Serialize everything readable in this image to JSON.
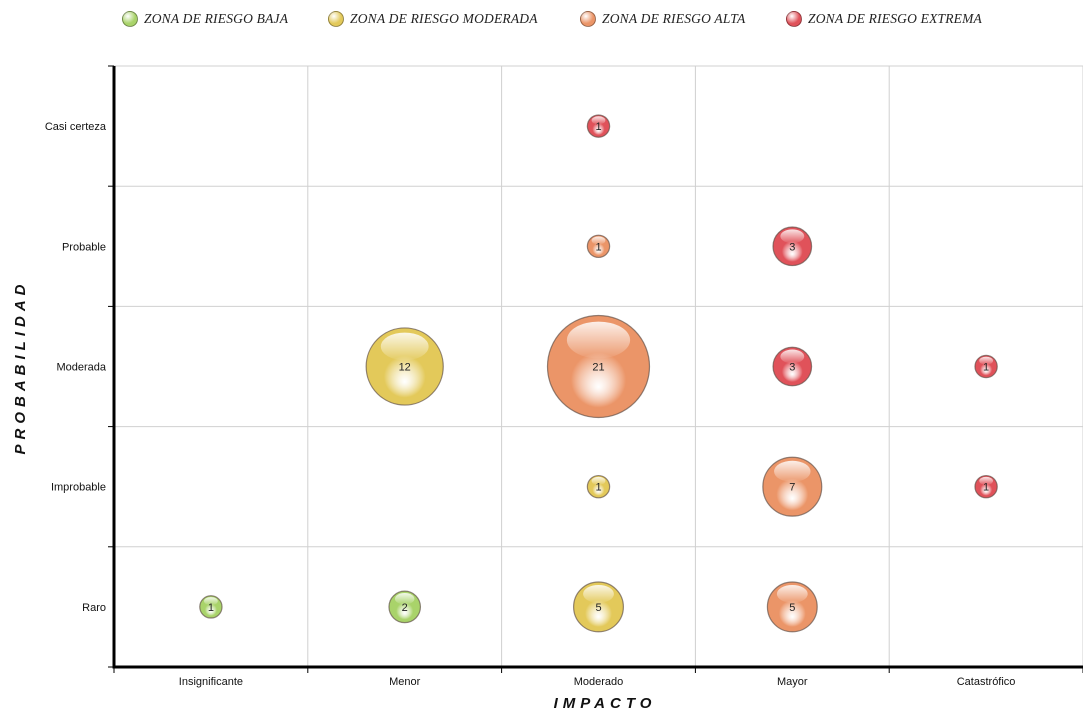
{
  "chart_data": {
    "type": "bubble",
    "legend": {
      "position": "top",
      "items": [
        {
          "id": "baja",
          "label": "ZONA DE RIESGO BAJA",
          "color": "#a9d36a"
        },
        {
          "id": "moderada",
          "label": "ZONA DE RIESGO MODERADA",
          "color": "#e3c95a"
        },
        {
          "id": "alta",
          "label": "ZONA DE RIESGO ALTA",
          "color": "#eb9568"
        },
        {
          "id": "extrema",
          "label": "ZONA DE RIESGO EXTREMA",
          "color": "#e0525a"
        }
      ]
    },
    "xlabel": "IMPACTO",
    "ylabel": "PROBABILIDAD",
    "x_categories": [
      "Insignificante",
      "Menor",
      "Moderado",
      "Mayor",
      "Catastrófico"
    ],
    "y_categories": [
      "Raro",
      "Improbable",
      "Moderada",
      "Probable",
      "Casi certeza"
    ],
    "grid": true,
    "points": [
      {
        "x": "Insignificante",
        "y": "Raro",
        "value": 1,
        "zone": "baja"
      },
      {
        "x": "Menor",
        "y": "Raro",
        "value": 2,
        "zone": "baja"
      },
      {
        "x": "Moderado",
        "y": "Raro",
        "value": 5,
        "zone": "moderada"
      },
      {
        "x": "Mayor",
        "y": "Raro",
        "value": 5,
        "zone": "alta"
      },
      {
        "x": "Moderado",
        "y": "Improbable",
        "value": 1,
        "zone": "moderada"
      },
      {
        "x": "Mayor",
        "y": "Improbable",
        "value": 7,
        "zone": "alta"
      },
      {
        "x": "Catastrófico",
        "y": "Improbable",
        "value": 1,
        "zone": "extrema"
      },
      {
        "x": "Menor",
        "y": "Moderada",
        "value": 12,
        "zone": "moderada"
      },
      {
        "x": "Moderado",
        "y": "Moderada",
        "value": 21,
        "zone": "alta"
      },
      {
        "x": "Mayor",
        "y": "Moderada",
        "value": 3,
        "zone": "extrema"
      },
      {
        "x": "Catastrófico",
        "y": "Moderada",
        "value": 1,
        "zone": "extrema"
      },
      {
        "x": "Moderado",
        "y": "Probable",
        "value": 1,
        "zone": "alta"
      },
      {
        "x": "Mayor",
        "y": "Probable",
        "value": 3,
        "zone": "extrema"
      },
      {
        "x": "Moderado",
        "y": "Casi certeza",
        "value": 1,
        "zone": "extrema"
      }
    ]
  }
}
